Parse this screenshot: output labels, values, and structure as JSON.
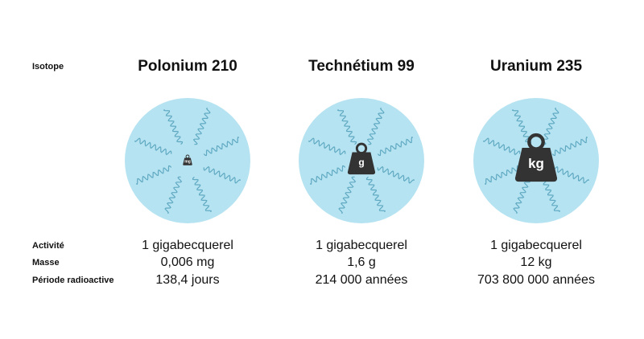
{
  "row_labels": {
    "isotope": "Isotope",
    "activity": "Activité",
    "mass": "Masse",
    "period": "Période radioactive"
  },
  "columns": [
    {
      "title": "Polonium 210",
      "icon_unit": "mg",
      "activity": "1 gigabecquerel",
      "mass": "0,006 mg",
      "period": "138,4 jours"
    },
    {
      "title": "Technétium 99",
      "icon_unit": "g",
      "activity": "1 gigabecquerel",
      "mass": "1,6 g",
      "period": "214 000 années"
    },
    {
      "title": "Uranium 235",
      "icon_unit": "kg",
      "activity": "1 gigabecquerel",
      "mass": "12 kg",
      "period": "703 800 000 années"
    }
  ]
}
